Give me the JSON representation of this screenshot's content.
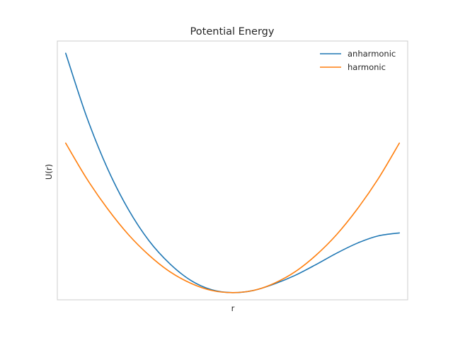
{
  "chart_data": {
    "type": "line",
    "title": "Potential Energy",
    "xlabel": "r",
    "ylabel": "U(r)",
    "xticks": [],
    "yticks": [],
    "grid": false,
    "legend_position": "top-right",
    "xlim": [
      -2.1,
      2.1
    ],
    "ylim": [
      -0.1,
      3.5
    ],
    "series": [
      {
        "name": "anharmonic",
        "color": "#1f77b4",
        "x": [
          -2.0,
          -1.75,
          -1.5,
          -1.25,
          -1.0,
          -0.75,
          -0.5,
          -0.25,
          0.0,
          0.25,
          0.5,
          0.75,
          1.0,
          1.25,
          1.5,
          1.75,
          2.0
        ],
        "y": [
          3.33,
          2.45,
          1.73,
          1.16,
          0.72,
          0.4,
          0.17,
          0.04,
          0.0,
          0.03,
          0.12,
          0.24,
          0.39,
          0.55,
          0.69,
          0.79,
          0.83
        ]
      },
      {
        "name": "harmonic",
        "color": "#ff7f0e",
        "x": [
          -2.0,
          -1.75,
          -1.5,
          -1.25,
          -1.0,
          -0.75,
          -0.5,
          -0.25,
          0.0,
          0.25,
          0.5,
          0.75,
          1.0,
          1.25,
          1.5,
          1.75,
          2.0
        ],
        "y": [
          2.08,
          1.59,
          1.17,
          0.81,
          0.52,
          0.29,
          0.13,
          0.03,
          0.0,
          0.03,
          0.13,
          0.29,
          0.52,
          0.81,
          1.17,
          1.59,
          2.08
        ]
      }
    ]
  }
}
